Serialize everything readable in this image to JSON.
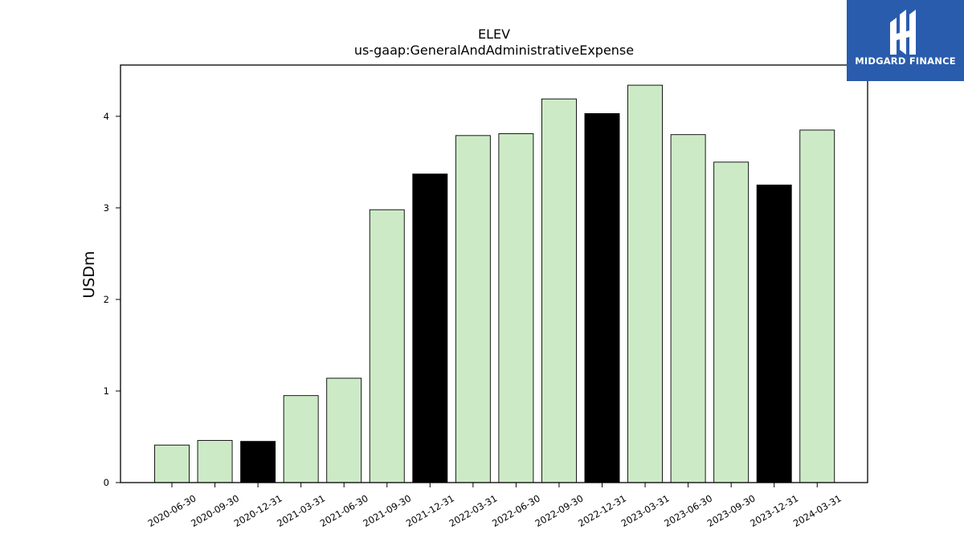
{
  "chart_data": {
    "type": "bar",
    "title": "ELEV",
    "subtitle": "us-gaap:GeneralAndAdministrativeExpense",
    "xlabel": "",
    "ylabel": "USDm",
    "ylim": [
      0,
      4.56
    ],
    "yticks": [
      0,
      1,
      2,
      3,
      4
    ],
    "grid": false,
    "categories": [
      "2020-06-30",
      "2020-09-30",
      "2020-12-31",
      "2021-03-31",
      "2021-06-30",
      "2021-09-30",
      "2021-12-31",
      "2022-03-31",
      "2022-06-30",
      "2022-09-30",
      "2022-12-31",
      "2023-03-31",
      "2023-06-30",
      "2023-09-30",
      "2023-12-31",
      "2024-03-31"
    ],
    "values": [
      0.41,
      0.46,
      0.45,
      0.95,
      1.14,
      2.98,
      3.37,
      3.79,
      3.81,
      4.19,
      4.03,
      4.34,
      3.8,
      3.5,
      3.25,
      3.85
    ],
    "colors": {
      "default": "#cdeac7",
      "highlight": "#000000",
      "edge": "#000000"
    },
    "highlighted_categories": [
      "2020-12-31",
      "2021-12-31",
      "2022-12-31",
      "2023-12-31"
    ]
  },
  "brand": {
    "name": "MIDGARD FINANCE",
    "icon": "midgard-logo-icon",
    "color": "#2a5cad"
  }
}
